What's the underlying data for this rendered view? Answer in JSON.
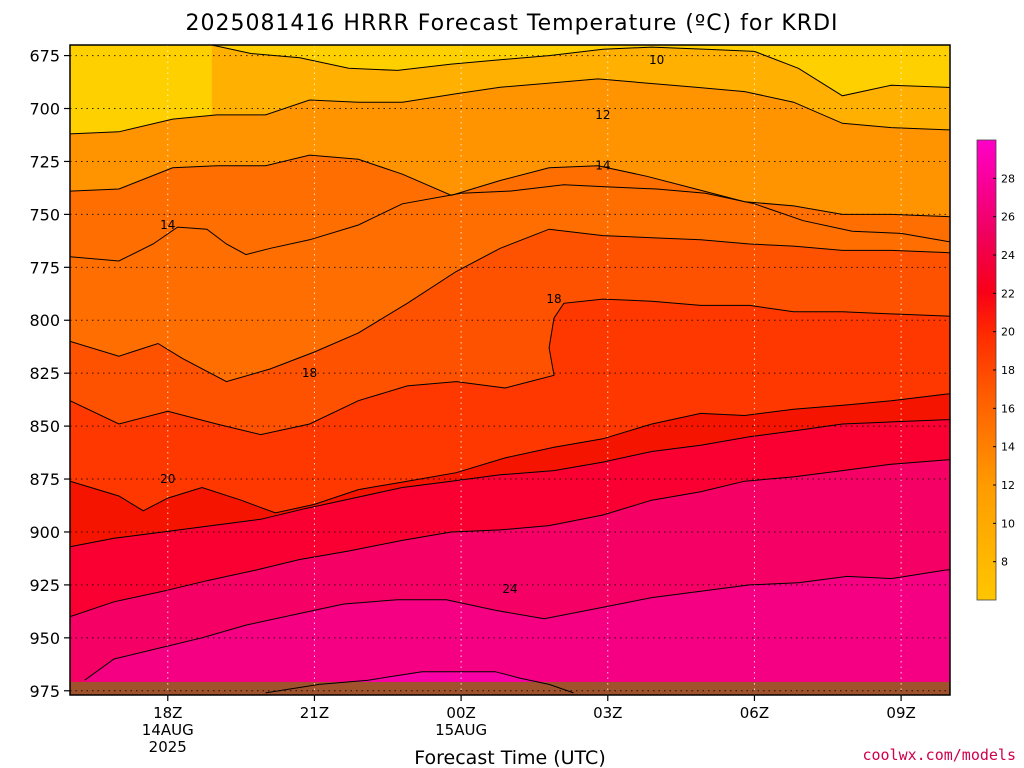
{
  "chart_data": {
    "type": "contour",
    "title": "2025081416 HRRR Forecast Temperature (ºC) for KRDI",
    "xlabel": "Forecast Time (UTC)",
    "ylabel": "",
    "x_ticks": [
      {
        "hour": 18,
        "lines": [
          "18Z",
          "14AUG",
          "2025"
        ]
      },
      {
        "hour": 21,
        "lines": [
          "21Z"
        ]
      },
      {
        "hour": 24,
        "lines": [
          "00Z",
          "15AUG"
        ]
      },
      {
        "hour": 27,
        "lines": [
          "03Z"
        ]
      },
      {
        "hour": 30,
        "lines": [
          "06Z"
        ]
      },
      {
        "hour": 33,
        "lines": [
          "09Z"
        ]
      }
    ],
    "xlim_hours": [
      16,
      34
    ],
    "y_ticks": [
      675,
      700,
      725,
      750,
      775,
      800,
      825,
      850,
      875,
      900,
      925,
      950,
      975
    ],
    "ylim_hPa": [
      670,
      977
    ],
    "grid": "dotted",
    "colorbar_ticks": [
      8,
      10,
      12,
      14,
      16,
      18,
      20,
      22,
      24,
      26,
      28
    ],
    "colorbar_range": [
      6,
      30
    ],
    "contour_levels": [
      10,
      12,
      14,
      16,
      18,
      20,
      22,
      24,
      26,
      28
    ],
    "contour_labels": [
      {
        "value": "10",
        "hour": 28.0,
        "p": 677
      },
      {
        "value": "12",
        "hour": 26.9,
        "p": 703
      },
      {
        "value": "14",
        "hour": 26.9,
        "p": 727
      },
      {
        "value": "14",
        "hour": 18.0,
        "p": 755
      },
      {
        "value": "18",
        "hour": 25.9,
        "p": 790
      },
      {
        "value": "18",
        "hour": 20.9,
        "p": 825
      },
      {
        "value": "20",
        "hour": 18.0,
        "p": 875
      },
      {
        "value": "24",
        "hour": 25.0,
        "p": 927
      }
    ],
    "contours": [
      {
        "level": 10,
        "points": [
          [
            18.9,
            670
          ],
          [
            19.7,
            674
          ],
          [
            20.7,
            676
          ],
          [
            21.7,
            681
          ],
          [
            22.7,
            682
          ],
          [
            23.8,
            679
          ],
          [
            24.8,
            677
          ],
          [
            25.8,
            675
          ],
          [
            26.9,
            672
          ],
          [
            27.9,
            671
          ],
          [
            29.0,
            672
          ],
          [
            30.0,
            673
          ],
          [
            30.9,
            681
          ],
          [
            31.8,
            694
          ],
          [
            32.8,
            689
          ],
          [
            33.9,
            690
          ],
          [
            35.0,
            691
          ]
        ]
      },
      {
        "level": 12,
        "points": [
          [
            16.0,
            712
          ],
          [
            17.0,
            711
          ],
          [
            18.1,
            705
          ],
          [
            19.0,
            703
          ],
          [
            20.0,
            703
          ],
          [
            20.9,
            696
          ],
          [
            21.9,
            697
          ],
          [
            22.8,
            697
          ],
          [
            23.9,
            693
          ],
          [
            24.8,
            690
          ],
          [
            25.8,
            688
          ],
          [
            26.8,
            686
          ],
          [
            27.8,
            688
          ],
          [
            28.8,
            690
          ],
          [
            29.8,
            692
          ],
          [
            30.8,
            697
          ],
          [
            31.8,
            707
          ],
          [
            32.8,
            709
          ],
          [
            33.9,
            710
          ],
          [
            35.0,
            711
          ]
        ]
      },
      {
        "level": 14,
        "points": [
          [
            16.0,
            739
          ],
          [
            17.0,
            738
          ],
          [
            18.1,
            728
          ],
          [
            19.0,
            727
          ],
          [
            20.0,
            727
          ],
          [
            20.9,
            722
          ],
          [
            21.9,
            724
          ],
          [
            22.8,
            731
          ],
          [
            23.8,
            741
          ],
          [
            24.8,
            734
          ],
          [
            25.8,
            728
          ],
          [
            26.8,
            727
          ],
          [
            27.8,
            732
          ],
          [
            28.8,
            738
          ],
          [
            29.8,
            744
          ],
          [
            30.8,
            746
          ],
          [
            31.8,
            750
          ],
          [
            32.8,
            750
          ],
          [
            33.9,
            751
          ],
          [
            35.0,
            752
          ]
        ]
      },
      {
        "level": 14,
        "points": [
          [
            16.0,
            770
          ],
          [
            17.0,
            772
          ],
          [
            17.7,
            764
          ],
          [
            18.2,
            756
          ],
          [
            18.8,
            757
          ],
          [
            19.2,
            764
          ],
          [
            19.6,
            769
          ],
          [
            20.1,
            766
          ],
          [
            20.9,
            762
          ],
          [
            21.9,
            755
          ],
          [
            22.8,
            745
          ],
          [
            24.0,
            740
          ],
          [
            25.0,
            739
          ],
          [
            26.1,
            736
          ],
          [
            27.0,
            737
          ],
          [
            28.0,
            738
          ],
          [
            29.0,
            740
          ],
          [
            30.0,
            745
          ],
          [
            31.0,
            753
          ],
          [
            32.0,
            758
          ],
          [
            33.0,
            759
          ],
          [
            34.0,
            763
          ],
          [
            35.0,
            765
          ]
        ]
      },
      {
        "level": 16,
        "points": [
          [
            16.0,
            810
          ],
          [
            17.0,
            817
          ],
          [
            17.8,
            811
          ],
          [
            18.3,
            818
          ],
          [
            19.2,
            829
          ],
          [
            20.1,
            823
          ],
          [
            21.0,
            815
          ],
          [
            21.9,
            806
          ],
          [
            22.9,
            792
          ],
          [
            23.9,
            777
          ],
          [
            24.8,
            766
          ],
          [
            25.8,
            757
          ],
          [
            26.9,
            760
          ],
          [
            27.9,
            761
          ],
          [
            28.9,
            762
          ],
          [
            29.9,
            764
          ],
          [
            30.8,
            765
          ],
          [
            31.8,
            767
          ],
          [
            32.8,
            767
          ],
          [
            33.9,
            768
          ],
          [
            35.0,
            770
          ]
        ]
      },
      {
        "level": 18,
        "points": [
          [
            16.0,
            838
          ],
          [
            17.0,
            849
          ],
          [
            18.0,
            843
          ],
          [
            19.0,
            849
          ],
          [
            19.9,
            854
          ],
          [
            20.9,
            849
          ],
          [
            21.9,
            838
          ],
          [
            22.9,
            831
          ],
          [
            23.9,
            829
          ],
          [
            24.9,
            832
          ],
          [
            25.9,
            826
          ],
          [
            25.8,
            813
          ],
          [
            25.9,
            799
          ],
          [
            26.1,
            792
          ],
          [
            26.9,
            790
          ],
          [
            27.9,
            791
          ],
          [
            28.9,
            793
          ],
          [
            29.9,
            793
          ],
          [
            30.8,
            796
          ],
          [
            31.8,
            796
          ],
          [
            32.8,
            797
          ],
          [
            33.9,
            798
          ],
          [
            35.0,
            799
          ]
        ]
      },
      {
        "level": 20,
        "points": [
          [
            16.0,
            876
          ],
          [
            17.0,
            883
          ],
          [
            17.5,
            890
          ],
          [
            18.0,
            884
          ],
          [
            18.7,
            879
          ],
          [
            19.5,
            885
          ],
          [
            20.2,
            891
          ],
          [
            21.0,
            887
          ],
          [
            21.9,
            880
          ],
          [
            22.9,
            876
          ],
          [
            23.9,
            872
          ],
          [
            24.9,
            865
          ],
          [
            25.9,
            860
          ],
          [
            26.9,
            856
          ],
          [
            27.9,
            849
          ],
          [
            28.9,
            844
          ],
          [
            29.8,
            845
          ],
          [
            30.8,
            842
          ],
          [
            31.9,
            840
          ],
          [
            32.8,
            838
          ],
          [
            33.9,
            835
          ],
          [
            35.0,
            832
          ]
        ]
      },
      {
        "level": 22,
        "points": [
          [
            16.0,
            907
          ],
          [
            16.9,
            903
          ],
          [
            17.9,
            900
          ],
          [
            18.9,
            897
          ],
          [
            19.9,
            894
          ],
          [
            20.8,
            889
          ],
          [
            21.8,
            884
          ],
          [
            22.8,
            879
          ],
          [
            23.8,
            876
          ],
          [
            24.8,
            873
          ],
          [
            25.9,
            871
          ],
          [
            26.9,
            867
          ],
          [
            27.9,
            862
          ],
          [
            28.9,
            859
          ],
          [
            29.9,
            855
          ],
          [
            30.9,
            852
          ],
          [
            31.8,
            849
          ],
          [
            32.8,
            848
          ],
          [
            33.9,
            847
          ],
          [
            35.0,
            846
          ]
        ]
      },
      {
        "level": 24,
        "points": [
          [
            16.0,
            940
          ],
          [
            16.9,
            933
          ],
          [
            17.9,
            928
          ],
          [
            18.8,
            923
          ],
          [
            19.8,
            918
          ],
          [
            20.7,
            913
          ],
          [
            21.7,
            909
          ],
          [
            22.8,
            904
          ],
          [
            23.8,
            900
          ],
          [
            24.8,
            899
          ],
          [
            25.8,
            897
          ],
          [
            26.9,
            892
          ],
          [
            27.9,
            885
          ],
          [
            28.9,
            881
          ],
          [
            29.8,
            876
          ],
          [
            30.8,
            874
          ],
          [
            31.8,
            871
          ],
          [
            32.8,
            868
          ],
          [
            33.9,
            866
          ],
          [
            35.0,
            864
          ]
        ]
      },
      {
        "level": 26,
        "points": [
          [
            16.3,
            970
          ],
          [
            16.9,
            960
          ],
          [
            17.8,
            955
          ],
          [
            18.7,
            950
          ],
          [
            19.6,
            944
          ],
          [
            20.6,
            939
          ],
          [
            21.6,
            934
          ],
          [
            22.7,
            932
          ],
          [
            23.7,
            932
          ],
          [
            24.7,
            937
          ],
          [
            25.7,
            941
          ],
          [
            26.8,
            936
          ],
          [
            27.9,
            931
          ],
          [
            28.9,
            928
          ],
          [
            29.9,
            925
          ],
          [
            30.9,
            924
          ],
          [
            31.9,
            921
          ],
          [
            32.8,
            922
          ],
          [
            33.9,
            918
          ],
          [
            35.0,
            916
          ]
        ]
      },
      {
        "level": 28,
        "points": [
          [
            20.0,
            976
          ],
          [
            21.1,
            972
          ],
          [
            22.1,
            970
          ],
          [
            23.2,
            966
          ],
          [
            24.1,
            966
          ],
          [
            24.7,
            966
          ],
          [
            25.2,
            969
          ],
          [
            25.8,
            972
          ],
          [
            26.3,
            976
          ]
        ]
      }
    ],
    "credit": "coolwx.com/models"
  }
}
